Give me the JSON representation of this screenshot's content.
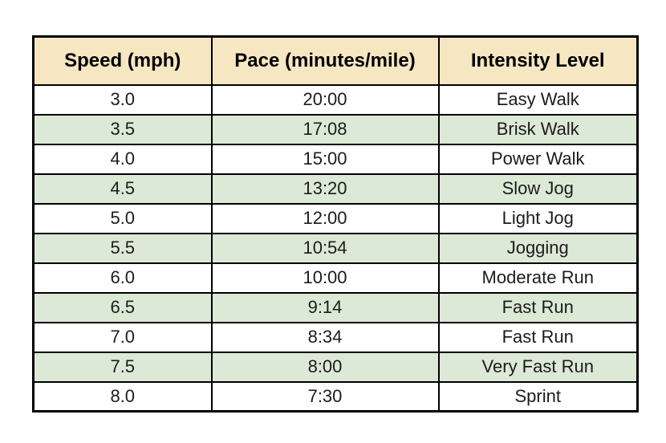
{
  "table": {
    "columns": [
      "Speed (mph)",
      "Pace (minutes/mile)",
      "Intensity Level"
    ],
    "rows": [
      {
        "speed": "3.0",
        "pace": "20:00",
        "intensity": "Easy Walk"
      },
      {
        "speed": "3.5",
        "pace": "17:08",
        "intensity": "Brisk Walk"
      },
      {
        "speed": "4.0",
        "pace": "15:00",
        "intensity": "Power Walk"
      },
      {
        "speed": "4.5",
        "pace": "13:20",
        "intensity": "Slow Jog"
      },
      {
        "speed": "5.0",
        "pace": "12:00",
        "intensity": "Light Jog"
      },
      {
        "speed": "5.5",
        "pace": "10:54",
        "intensity": "Jogging"
      },
      {
        "speed": "6.0",
        "pace": "10:00",
        "intensity": "Moderate Run"
      },
      {
        "speed": "6.5",
        "pace": "9:14",
        "intensity": "Fast Run"
      },
      {
        "speed": "7.0",
        "pace": "8:34",
        "intensity": "Fast Run"
      },
      {
        "speed": "7.5",
        "pace": "8:00",
        "intensity": "Very Fast Run"
      },
      {
        "speed": "8.0",
        "pace": "7:30",
        "intensity": "Sprint"
      }
    ]
  },
  "colors": {
    "header_bg": "#f6e7c2",
    "alt_row_bg": "#dce9d6",
    "border": "#000000",
    "page_bg": "#ffffff",
    "text": "#1c1c1c"
  }
}
